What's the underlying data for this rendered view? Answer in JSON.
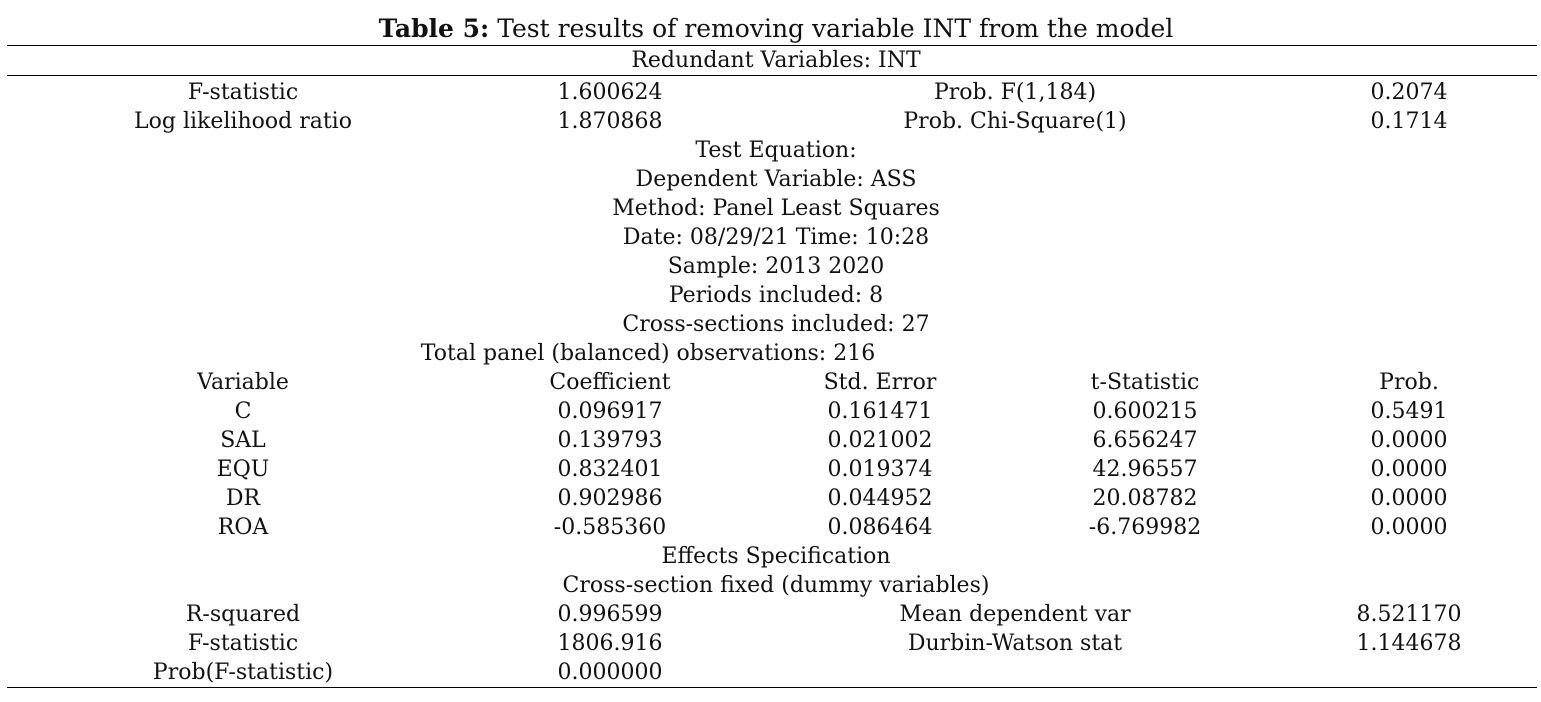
{
  "table": {
    "title_bold": "Table 5:",
    "title_rest": " Test results of removing variable INT from the model",
    "section_header": "Redundant Variables: INT",
    "test_rows": [
      {
        "label": "F-statistic",
        "value": "1.600624",
        "prob_label": "Prob. F(1,184)",
        "prob_value": "0.2074"
      },
      {
        "label": "Log likelihood ratio",
        "value": "1.870868",
        "prob_label": "Prob. Chi-Square(1)",
        "prob_value": "0.1714"
      }
    ],
    "equation_lines": [
      "Test Equation:",
      "Dependent Variable: ASS",
      "Method: Panel Least Squares",
      "Date: 08/29/21 Time: 10:28",
      "Sample: 2013 2020",
      "Periods included: 8",
      "Cross-sections included: 27",
      "Total panel (balanced) observations: 216"
    ],
    "coef_headers": [
      "Variable",
      "Coefficient",
      "Std. Error",
      "t-Statistic",
      "Prob."
    ],
    "coef_rows": [
      [
        "C",
        "0.096917",
        "0.161471",
        "0.600215",
        "0.5491"
      ],
      [
        "SAL",
        "0.139793",
        "0.021002",
        "6.656247",
        "0.0000"
      ],
      [
        "EQU",
        "0.832401",
        "0.019374",
        "42.96557",
        "0.0000"
      ],
      [
        "DR",
        "0.902986",
        "0.044952",
        "20.08782",
        "0.0000"
      ],
      [
        "ROA",
        "-0.585360",
        "0.086464",
        "-6.769982",
        "0.0000"
      ]
    ],
    "effects_title": "Effects Specification",
    "effects_sub": "Cross-section fixed (dummy variables)",
    "stats_rows": [
      [
        "R-squared",
        "0.996599",
        "Mean dependent var",
        "8.521170"
      ],
      [
        "F-statistic",
        "1806.916",
        "Durbin-Watson stat",
        "1.144678"
      ],
      [
        "Prob(F-statistic)",
        "0.000000",
        "",
        ""
      ]
    ]
  }
}
